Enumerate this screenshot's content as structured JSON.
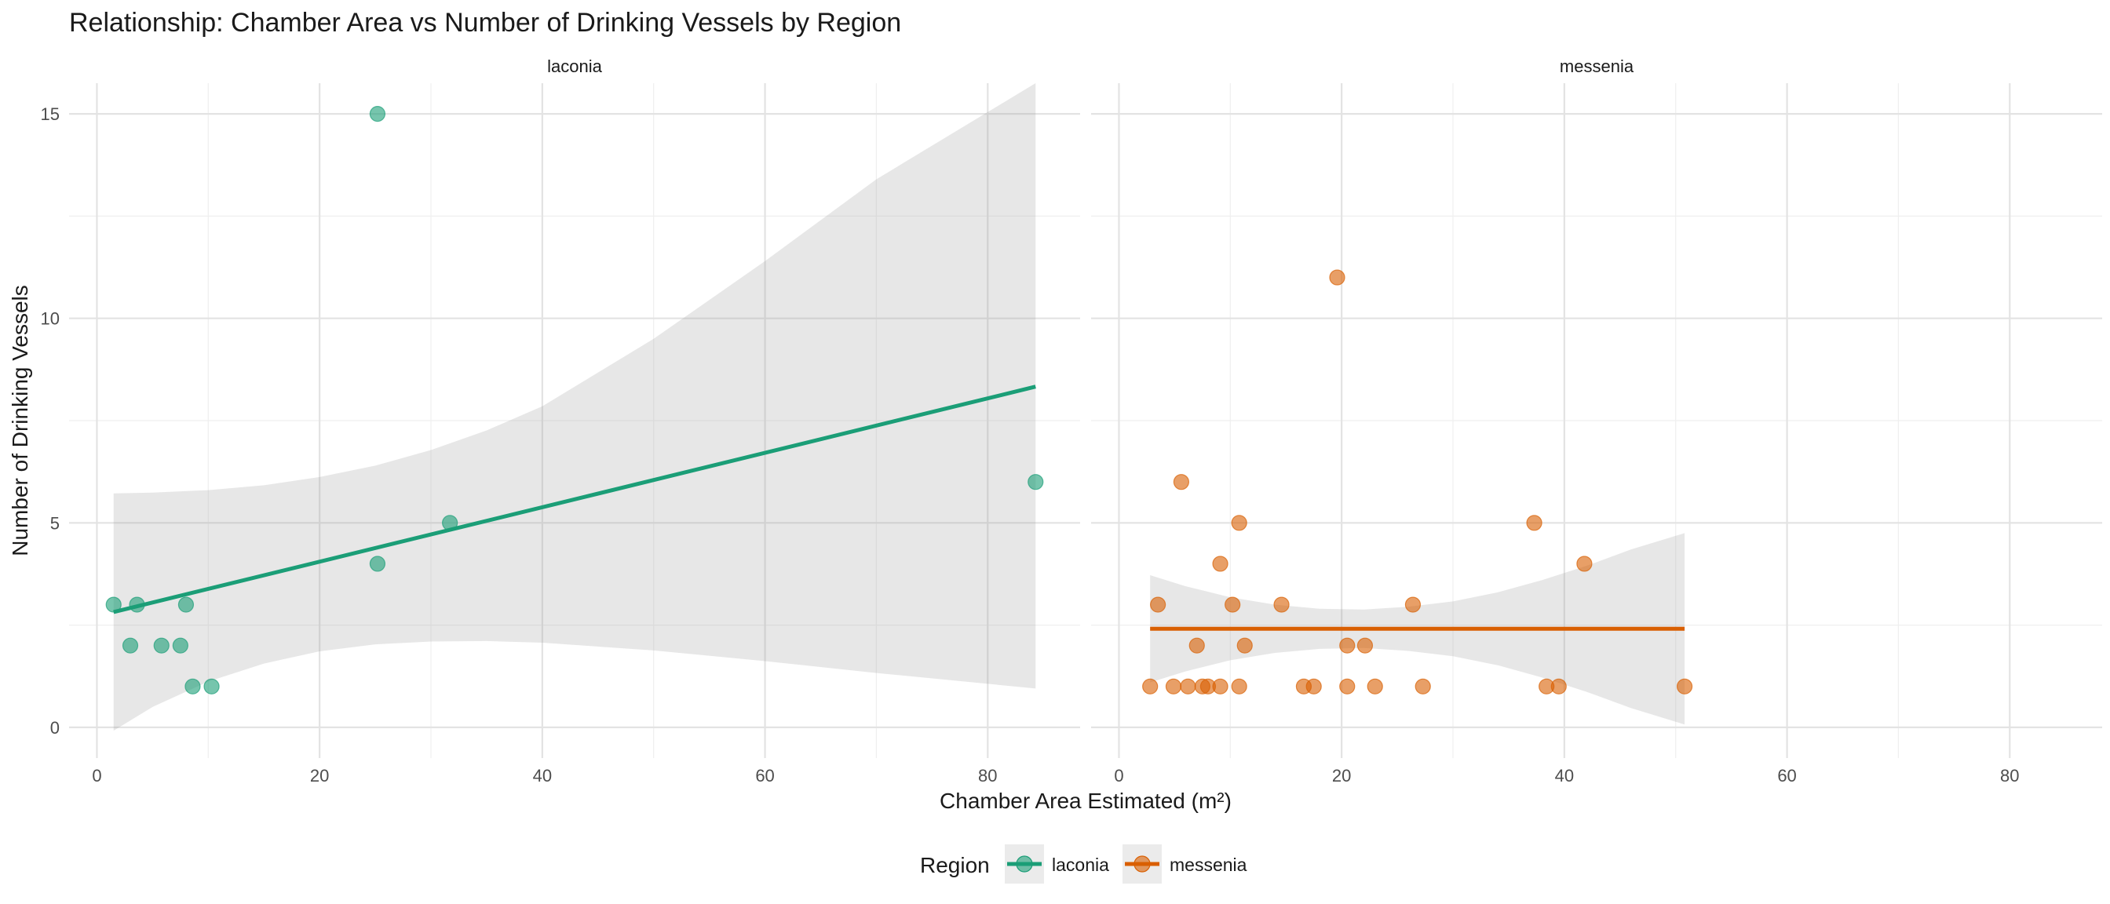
{
  "chart_data": {
    "type": "scatter",
    "title": "Relationship: Chamber Area vs Number of Drinking Vessels by Region",
    "xlabel": "Chamber Area Estimated (m²)",
    "ylabel": "Number of Drinking Vessels",
    "xlim": [
      -2.5,
      88.3
    ],
    "ylim": [
      -0.75,
      15.75
    ],
    "x_ticks": [
      0,
      20,
      40,
      60,
      80
    ],
    "y_ticks": [
      0,
      5,
      10,
      15
    ],
    "grid": true,
    "legend": {
      "title": "Region",
      "position": "bottom",
      "entries": [
        "laconia",
        "messenia"
      ]
    },
    "panels": [
      {
        "name": "laconia",
        "color": "#1b9e77",
        "points": [
          {
            "x": 1.5,
            "y": 3
          },
          {
            "x": 3.0,
            "y": 2
          },
          {
            "x": 3.6,
            "y": 3
          },
          {
            "x": 5.8,
            "y": 2
          },
          {
            "x": 7.5,
            "y": 2
          },
          {
            "x": 8.0,
            "y": 3
          },
          {
            "x": 8.6,
            "y": 1
          },
          {
            "x": 10.3,
            "y": 1
          },
          {
            "x": 25.2,
            "y": 15
          },
          {
            "x": 25.2,
            "y": 4
          },
          {
            "x": 31.7,
            "y": 5
          },
          {
            "x": 84.3,
            "y": 6
          }
        ],
        "fit": {
          "x": [
            1.5,
            84.3
          ],
          "y": [
            2.82,
            8.33
          ]
        },
        "band": {
          "x": [
            1.5,
            5,
            10,
            15,
            20,
            25,
            30,
            35,
            40,
            50,
            60,
            70,
            84.3
          ],
          "upper": [
            5.72,
            5.74,
            5.8,
            5.92,
            6.12,
            6.4,
            6.78,
            7.26,
            7.85,
            9.5,
            11.4,
            13.4,
            15.75
          ],
          "lower": [
            -0.08,
            0.5,
            1.12,
            1.56,
            1.86,
            2.03,
            2.1,
            2.11,
            2.07,
            1.88,
            1.62,
            1.33,
            0.95
          ]
        }
      },
      {
        "name": "messenia",
        "color": "#d95f02",
        "points": [
          {
            "x": 2.8,
            "y": 1
          },
          {
            "x": 3.5,
            "y": 3
          },
          {
            "x": 4.9,
            "y": 1
          },
          {
            "x": 5.6,
            "y": 6
          },
          {
            "x": 6.2,
            "y": 1
          },
          {
            "x": 7.0,
            "y": 2
          },
          {
            "x": 7.5,
            "y": 1
          },
          {
            "x": 8.0,
            "y": 1
          },
          {
            "x": 9.1,
            "y": 4
          },
          {
            "x": 9.1,
            "y": 1
          },
          {
            "x": 10.2,
            "y": 3
          },
          {
            "x": 10.8,
            "y": 5
          },
          {
            "x": 10.8,
            "y": 1
          },
          {
            "x": 11.3,
            "y": 2
          },
          {
            "x": 14.6,
            "y": 3
          },
          {
            "x": 16.6,
            "y": 1
          },
          {
            "x": 17.5,
            "y": 1
          },
          {
            "x": 19.6,
            "y": 11
          },
          {
            "x": 20.5,
            "y": 2
          },
          {
            "x": 20.5,
            "y": 1
          },
          {
            "x": 22.1,
            "y": 2
          },
          {
            "x": 23.0,
            "y": 1
          },
          {
            "x": 26.4,
            "y": 3
          },
          {
            "x": 27.3,
            "y": 1
          },
          {
            "x": 37.3,
            "y": 5
          },
          {
            "x": 38.4,
            "y": 1
          },
          {
            "x": 39.5,
            "y": 1
          },
          {
            "x": 41.8,
            "y": 4
          },
          {
            "x": 50.8,
            "y": 1
          }
        ],
        "fit": {
          "x": [
            2.8,
            50.8
          ],
          "y": [
            2.41,
            2.41
          ]
        },
        "band": {
          "x": [
            2.8,
            6,
            10,
            14,
            18,
            22,
            26,
            30,
            34,
            38,
            42,
            46,
            50.8
          ],
          "upper": [
            3.72,
            3.45,
            3.18,
            3.0,
            2.9,
            2.88,
            2.95,
            3.08,
            3.3,
            3.6,
            3.95,
            4.35,
            4.75
          ],
          "lower": [
            1.1,
            1.37,
            1.64,
            1.82,
            1.92,
            1.94,
            1.87,
            1.74,
            1.52,
            1.22,
            0.87,
            0.47,
            0.07
          ]
        }
      }
    ]
  }
}
